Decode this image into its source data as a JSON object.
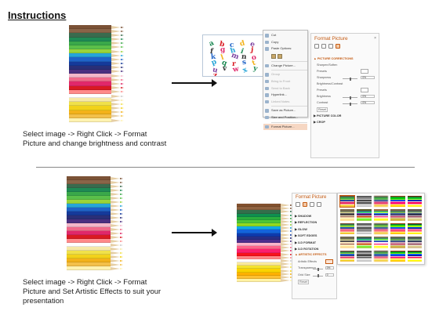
{
  "title": "Instructions",
  "instructions": {
    "top": [
      "Select image -> Right Click -> Format",
      "Picture and change brightness and contrast"
    ],
    "bottom": [
      "Select image -> Right Click -> Format",
      "Picture and Set Artistic Effects to suit your",
      "presentation"
    ]
  },
  "pencil_colors": [
    "#7b5236",
    "#8a6448",
    "#3a6b4e",
    "#1f8a55",
    "#3aa84a",
    "#5bc04a",
    "#9ad43a",
    "#26a5d8",
    "#1f63c7",
    "#153a9a",
    "#2a2f78",
    "#4b3080",
    "#f3b7c9",
    "#f06a8a",
    "#e0286a",
    "#d91a22",
    "#ff8a8a",
    "#ffffff",
    "#f6e9a8",
    "#f0e14a",
    "#f2d21a",
    "#f3b21a",
    "#f3c04a",
    "#fff2b0"
  ],
  "letters": [
    "a",
    "b",
    "c",
    "d",
    "e",
    "f",
    "g",
    "h",
    "i",
    "j",
    "k",
    "l",
    "m",
    "n",
    "o",
    "p",
    "q",
    "r",
    "s",
    "t",
    "u",
    "v",
    "w",
    "x",
    "y",
    "z"
  ],
  "context_menu": [
    {
      "label": "Cut",
      "disabled": false
    },
    {
      "label": "Copy",
      "disabled": false
    },
    {
      "label": "Paste Options:",
      "disabled": false,
      "highlight": true
    },
    {
      "label": "",
      "paste": true
    },
    {
      "label": "Change Picture...",
      "disabled": false
    },
    {
      "label": "Group",
      "disabled": true
    },
    {
      "label": "Bring to Front",
      "disabled": true
    },
    {
      "label": "Send to Back",
      "disabled": true
    },
    {
      "label": "Hyperlink...",
      "disabled": false
    },
    {
      "label": "Linked Notes",
      "disabled": true
    },
    {
      "label": "Save as Picture...",
      "disabled": false
    },
    {
      "label": "Size and Position...",
      "disabled": false
    },
    {
      "label": "Format Picture...",
      "disabled": false,
      "selected": true
    }
  ],
  "format_panel_top": {
    "title": "Format Picture",
    "close": "×",
    "rows": [
      {
        "text": "▲ PICTURE CORRECTIONS",
        "kind": "head active"
      },
      {
        "text": "Sharpen/Soften",
        "kind": "sub"
      },
      {
        "text": "Presets",
        "kind": "sub"
      },
      {
        "text": "Sharpness",
        "kind": "sub",
        "value": "0%"
      },
      {
        "text": "Brightness/Contrast",
        "kind": "sub"
      },
      {
        "text": "Presets",
        "kind": "sub"
      },
      {
        "text": "Brightness",
        "kind": "sub",
        "value": "0%"
      },
      {
        "text": "Contrast",
        "kind": "sub",
        "value": "0%"
      },
      {
        "text": "Reset",
        "kind": "sub"
      },
      {
        "text": "▶ PICTURE COLOR",
        "kind": "head"
      },
      {
        "text": "▶ CROP",
        "kind": "head"
      }
    ]
  },
  "format_panel_bottom": {
    "title": "Format Picture",
    "rows": [
      {
        "text": "▶ SHADOW",
        "kind": "head"
      },
      {
        "text": "▶ REFLECTION",
        "kind": "head"
      },
      {
        "text": "▶ GLOW",
        "kind": "head"
      },
      {
        "text": "▶ SOFT EDGES",
        "kind": "head"
      },
      {
        "text": "▶ 3-D FORMAT",
        "kind": "head"
      },
      {
        "text": "▶ 3-D ROTATION",
        "kind": "head"
      },
      {
        "text": "▲ ARTISTIC EFFECTS",
        "kind": "head active"
      },
      {
        "text": "Artistic Effects",
        "kind": "sub"
      },
      {
        "text": "Transparency",
        "kind": "sub",
        "value": "0%"
      },
      {
        "text": "Grid Size",
        "kind": "sub",
        "value": "0"
      },
      {
        "text": "Reset",
        "kind": "sub"
      }
    ]
  },
  "colors": {
    "accent": "#c55a11",
    "arrow": "#111111",
    "divider": "#888888"
  }
}
